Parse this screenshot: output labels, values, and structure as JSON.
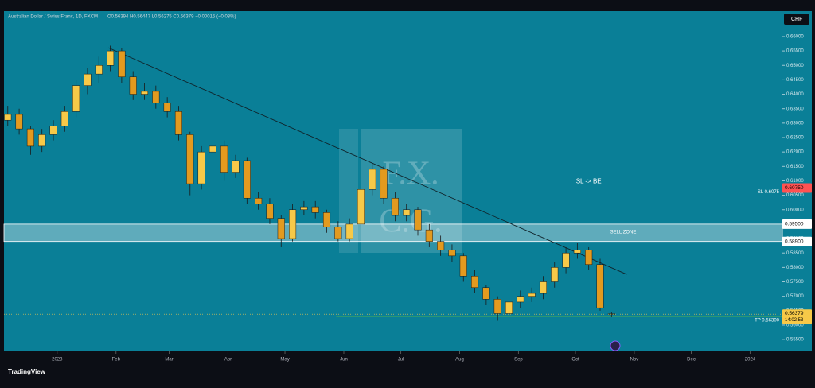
{
  "chart_data": {
    "type": "candlestick",
    "header": "Australian Dollar / Swiss Franc, 1D, FXCM",
    "ohlc_text": "O0.56394 H0.56447 L0.56275 C0.56379 −0.00015 (−0.03%)",
    "currency": "CHF",
    "brand": "TradingView",
    "watermark": [
      "F.X.",
      "C.G."
    ],
    "x": [
      -26,
      -20,
      -14,
      -8,
      -2,
      4,
      10,
      16,
      22,
      28,
      34,
      40,
      46,
      52,
      58,
      64,
      70,
      76,
      82,
      88,
      94,
      100,
      106,
      112,
      118,
      124,
      130,
      136,
      142,
      148,
      154,
      160,
      166,
      172,
      178,
      184,
      190,
      196,
      202,
      208,
      214,
      220,
      226,
      232,
      238,
      244,
      250,
      256,
      262,
      268,
      274,
      280,
      286,
      292
    ],
    "open": [
      0.631,
      0.633,
      0.628,
      0.622,
      0.626,
      0.629,
      0.634,
      0.643,
      0.647,
      0.65,
      0.655,
      0.646,
      0.64,
      0.641,
      0.637,
      0.634,
      0.626,
      0.609,
      0.62,
      0.622,
      0.613,
      0.617,
      0.604,
      0.602,
      0.597,
      0.59,
      0.6,
      0.601,
      0.599,
      0.594,
      0.59,
      0.595,
      0.607,
      0.614,
      0.604,
      0.598,
      0.6,
      0.593,
      0.589,
      0.586,
      0.584,
      0.577,
      0.573,
      0.569,
      0.564,
      0.568,
      0.57,
      0.571,
      0.575,
      0.58,
      0.585,
      0.586,
      0.581,
      0.56394
    ],
    "high": [
      0.636,
      0.635,
      0.629,
      0.628,
      0.631,
      0.636,
      0.645,
      0.649,
      0.653,
      0.6568,
      0.656,
      0.648,
      0.644,
      0.643,
      0.639,
      0.636,
      0.627,
      0.622,
      0.625,
      0.624,
      0.619,
      0.618,
      0.606,
      0.604,
      0.598,
      0.602,
      0.603,
      0.603,
      0.6,
      0.596,
      0.597,
      0.609,
      0.616,
      0.615,
      0.606,
      0.602,
      0.601,
      0.595,
      0.591,
      0.588,
      0.585,
      0.579,
      0.574,
      0.57,
      0.57,
      0.572,
      0.573,
      0.577,
      0.582,
      0.587,
      0.5885,
      0.587,
      0.583,
      0.56447
    ],
    "low": [
      0.629,
      0.626,
      0.619,
      0.62,
      0.624,
      0.627,
      0.632,
      0.64,
      0.644,
      0.648,
      0.644,
      0.638,
      0.638,
      0.635,
      0.632,
      0.624,
      0.605,
      0.607,
      0.618,
      0.61,
      0.611,
      0.602,
      0.6,
      0.595,
      0.587,
      0.589,
      0.598,
      0.597,
      0.592,
      0.589,
      0.589,
      0.594,
      0.605,
      0.602,
      0.596,
      0.596,
      0.591,
      0.587,
      0.584,
      0.582,
      0.575,
      0.571,
      0.567,
      0.5615,
      0.562,
      0.566,
      0.568,
      0.569,
      0.573,
      0.578,
      0.583,
      0.579,
      0.565,
      0.56275
    ],
    "close": [
      0.633,
      0.628,
      0.622,
      0.626,
      0.629,
      0.634,
      0.643,
      0.647,
      0.65,
      0.655,
      0.646,
      0.64,
      0.641,
      0.637,
      0.634,
      0.626,
      0.609,
      0.62,
      0.622,
      0.613,
      0.617,
      0.604,
      0.602,
      0.597,
      0.59,
      0.6,
      0.601,
      0.599,
      0.594,
      0.59,
      0.595,
      0.607,
      0.614,
      0.604,
      0.598,
      0.6,
      0.593,
      0.589,
      0.586,
      0.584,
      0.577,
      0.573,
      0.569,
      0.564,
      0.568,
      0.57,
      0.571,
      0.575,
      0.58,
      0.585,
      0.586,
      0.581,
      0.566,
      0.56379
    ],
    "up_color": "#f7c948",
    "down_color": "#e39a1f",
    "xlim": [
      -28,
      382
    ],
    "ylim": [
      0.5509,
      0.6688
    ],
    "xticks": [
      {
        "value": 0,
        "label": "2023"
      },
      {
        "value": 31,
        "label": "Feb"
      },
      {
        "value": 59,
        "label": "Mar"
      },
      {
        "value": 90,
        "label": "Apr"
      },
      {
        "value": 120,
        "label": "May"
      },
      {
        "value": 151,
        "label": "Jun"
      },
      {
        "value": 181,
        "label": "Jul"
      },
      {
        "value": 212,
        "label": "Aug"
      },
      {
        "value": 243,
        "label": "Sep"
      },
      {
        "value": 273,
        "label": "Oct"
      },
      {
        "value": 304,
        "label": "Nov"
      },
      {
        "value": 334,
        "label": "Dec"
      },
      {
        "value": 365,
        "label": "2024"
      }
    ],
    "yticks": [
      {
        "value": 0.555,
        "label": "0.55500"
      },
      {
        "value": 0.56,
        "label": "0.56000"
      },
      {
        "value": 0.565,
        "label": "0.56500"
      },
      {
        "value": 0.57,
        "label": "0.57000"
      },
      {
        "value": 0.575,
        "label": "0.57500"
      },
      {
        "value": 0.58,
        "label": "0.58000"
      },
      {
        "value": 0.585,
        "label": "0.58500"
      },
      {
        "value": 0.59,
        "label": "0.59000"
      },
      {
        "value": 0.595,
        "label": "0.59500"
      },
      {
        "value": 0.6,
        "label": "0.60000"
      },
      {
        "value": 0.605,
        "label": "0.60500"
      },
      {
        "value": 0.61,
        "label": "0.61000"
      },
      {
        "value": 0.615,
        "label": "0.61500"
      },
      {
        "value": 0.62,
        "label": "0.62000"
      },
      {
        "value": 0.625,
        "label": "0.62500"
      },
      {
        "value": 0.63,
        "label": "0.63000"
      },
      {
        "value": 0.635,
        "label": "0.63500"
      },
      {
        "value": 0.64,
        "label": "0.64000"
      },
      {
        "value": 0.645,
        "label": "0.64500"
      },
      {
        "value": 0.65,
        "label": "0.65000"
      },
      {
        "value": 0.655,
        "label": "0.65500"
      },
      {
        "value": 0.66,
        "label": "0.66000"
      }
    ],
    "trendline": {
      "x": [
        27,
        300
      ],
      "y": [
        0.6561,
        0.5776
      ]
    },
    "levels": [
      {
        "label": "SL 0.6075",
        "value": 0.6075,
        "tag": "0.60750",
        "color": "#ff5252",
        "start": 145
      },
      {
        "label": "TP 0.56300",
        "value": 0.563,
        "tag": "0.56300",
        "color": "#4caf50",
        "start": 147
      }
    ],
    "zone": {
      "label": "SELL ZONE",
      "top": {
        "value": 0.595,
        "label": "0.59500"
      },
      "bottom": {
        "value": 0.589,
        "label": "0.58900"
      }
    },
    "annotation": {
      "text": "SL -> BE",
      "x": 280,
      "y": 0.6098
    },
    "last_price": {
      "value": 0.56379,
      "label": "0.56379",
      "countdown": "14:02:53"
    }
  }
}
